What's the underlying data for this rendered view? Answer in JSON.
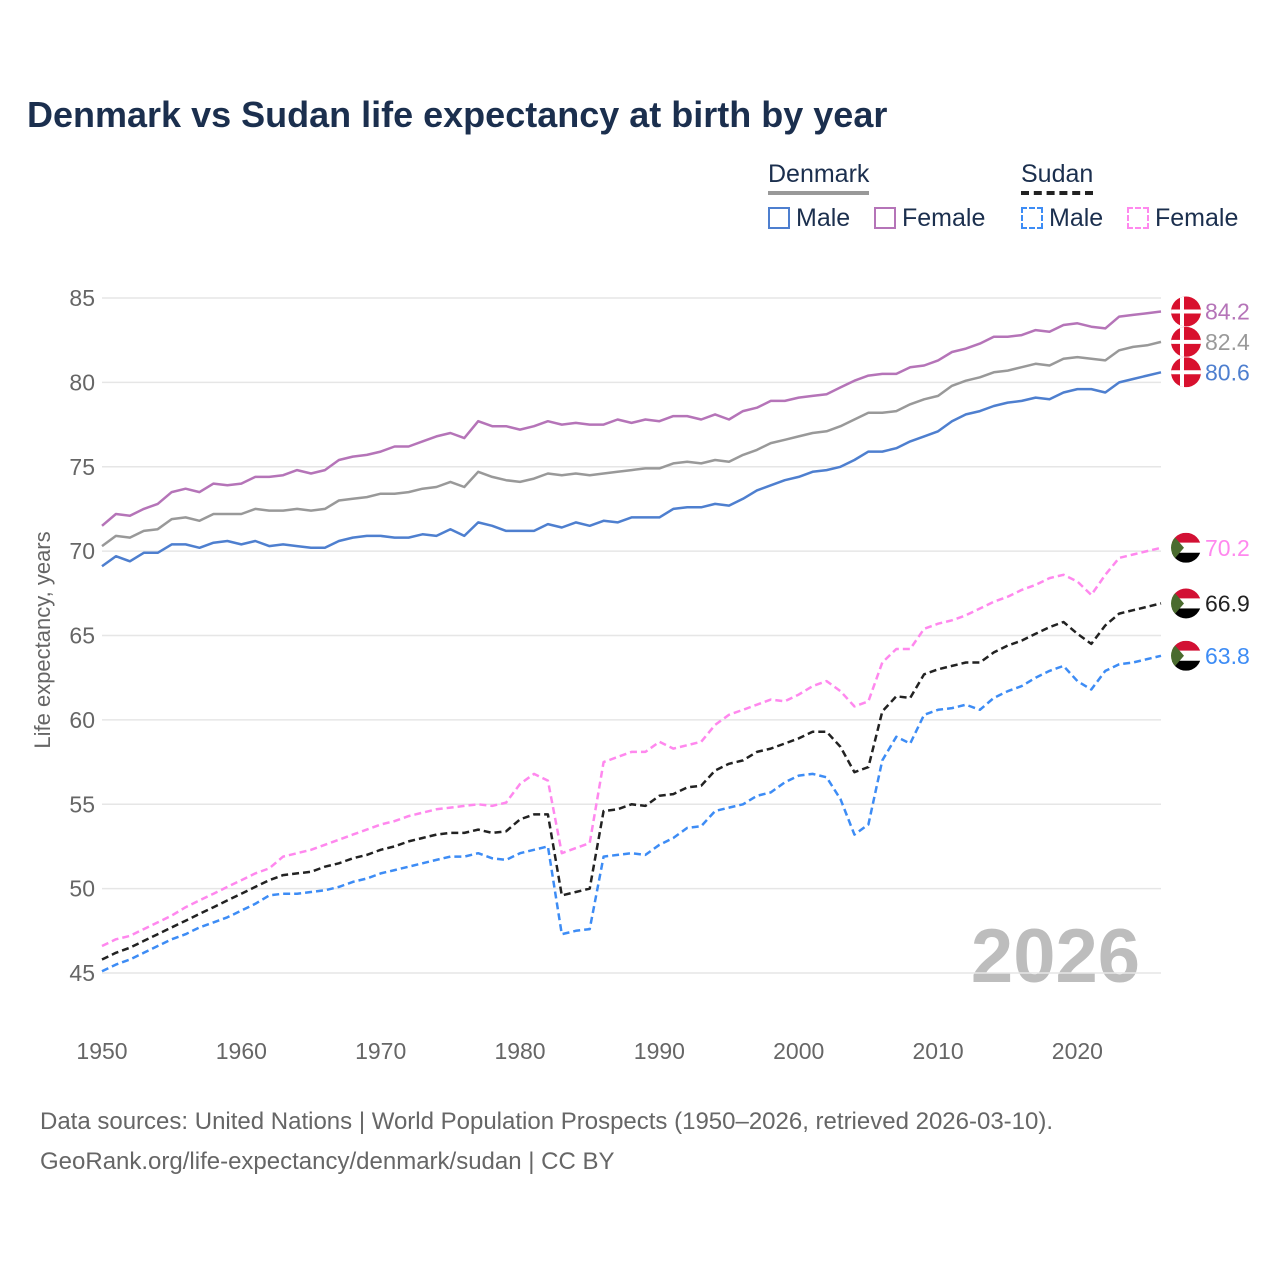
{
  "title": "Denmark vs Sudan life expectancy at birth by year",
  "legend": {
    "denmark": {
      "label": "Denmark",
      "male": "Male",
      "female": "Female"
    },
    "sudan": {
      "label": "Sudan",
      "male": "Male",
      "female": "Female"
    }
  },
  "footer": {
    "line1": "Data sources: United Nations | World Population Prospects (1950–2026, retrieved 2026-03-10).",
    "line2": "GeoRank.org/life-expectancy/denmark/sudan | CC BY"
  },
  "chart_data": {
    "type": "line",
    "title": "Denmark vs Sudan life expectancy at birth by year",
    "xlabel": "",
    "ylabel": "Life expectancy, years",
    "xlim": [
      1950,
      2026
    ],
    "ylim": [
      45,
      85
    ],
    "x_ticks": [
      1950,
      1960,
      1970,
      1980,
      1990,
      2000,
      2010,
      2020
    ],
    "y_ticks": [
      45,
      50,
      55,
      60,
      65,
      70,
      75,
      80,
      85
    ],
    "grid": true,
    "legend_position": "top-right",
    "year_watermark": "2026",
    "x_start": 1950,
    "series": [
      {
        "name": "Denmark Female",
        "country": "denmark",
        "color": "#b574b8",
        "dashed": false,
        "end_label": "84.2",
        "values": [
          71.5,
          72.2,
          72.1,
          72.5,
          72.8,
          73.5,
          73.7,
          73.5,
          74.0,
          73.9,
          74.0,
          74.4,
          74.4,
          74.5,
          74.8,
          74.6,
          74.8,
          75.4,
          75.6,
          75.7,
          75.9,
          76.2,
          76.2,
          76.5,
          76.8,
          77.0,
          76.7,
          77.7,
          77.4,
          77.4,
          77.2,
          77.4,
          77.7,
          77.5,
          77.6,
          77.5,
          77.5,
          77.8,
          77.6,
          77.8,
          77.7,
          78.0,
          78.0,
          77.8,
          78.1,
          77.8,
          78.3,
          78.5,
          78.9,
          78.9,
          79.1,
          79.2,
          79.3,
          79.7,
          80.1,
          80.4,
          80.5,
          80.5,
          80.9,
          81.0,
          81.3,
          81.8,
          82.0,
          82.3,
          82.7,
          82.7,
          82.8,
          83.1,
          83.0,
          83.4,
          83.5,
          83.3,
          83.2,
          83.9,
          84.0,
          84.1,
          84.2
        ]
      },
      {
        "name": "Denmark Total",
        "country": "denmark",
        "color": "#999999",
        "dashed": false,
        "end_label": "82.4",
        "values": [
          70.3,
          70.9,
          70.8,
          71.2,
          71.3,
          71.9,
          72.0,
          71.8,
          72.2,
          72.2,
          72.2,
          72.5,
          72.4,
          72.4,
          72.5,
          72.4,
          72.5,
          73.0,
          73.1,
          73.2,
          73.4,
          73.4,
          73.5,
          73.7,
          73.8,
          74.1,
          73.8,
          74.7,
          74.4,
          74.2,
          74.1,
          74.3,
          74.6,
          74.5,
          74.6,
          74.5,
          74.6,
          74.7,
          74.8,
          74.9,
          74.9,
          75.2,
          75.3,
          75.2,
          75.4,
          75.3,
          75.7,
          76.0,
          76.4,
          76.6,
          76.8,
          77.0,
          77.1,
          77.4,
          77.8,
          78.2,
          78.2,
          78.3,
          78.7,
          79.0,
          79.2,
          79.8,
          80.1,
          80.3,
          80.6,
          80.7,
          80.9,
          81.1,
          81.0,
          81.4,
          81.5,
          81.4,
          81.3,
          81.9,
          82.1,
          82.2,
          82.4
        ]
      },
      {
        "name": "Denmark Male",
        "country": "denmark",
        "color": "#4e7fcf",
        "dashed": false,
        "end_label": "80.6",
        "values": [
          69.1,
          69.7,
          69.4,
          69.9,
          69.9,
          70.4,
          70.4,
          70.2,
          70.5,
          70.6,
          70.4,
          70.6,
          70.3,
          70.4,
          70.3,
          70.2,
          70.2,
          70.6,
          70.8,
          70.9,
          70.9,
          70.8,
          70.8,
          71.0,
          70.9,
          71.3,
          70.9,
          71.7,
          71.5,
          71.2,
          71.2,
          71.2,
          71.6,
          71.4,
          71.7,
          71.5,
          71.8,
          71.7,
          72.0,
          72.0,
          72.0,
          72.5,
          72.6,
          72.6,
          72.8,
          72.7,
          73.1,
          73.6,
          73.9,
          74.2,
          74.4,
          74.7,
          74.8,
          75.0,
          75.4,
          75.9,
          75.9,
          76.1,
          76.5,
          76.8,
          77.1,
          77.7,
          78.1,
          78.3,
          78.6,
          78.8,
          78.9,
          79.1,
          79.0,
          79.4,
          79.6,
          79.6,
          79.4,
          80.0,
          80.2,
          80.4,
          80.6
        ]
      },
      {
        "name": "Sudan Female",
        "country": "sudan",
        "color": "#ff88ee",
        "dashed": true,
        "end_label": "70.2",
        "values": [
          46.6,
          47.0,
          47.2,
          47.6,
          48.0,
          48.4,
          48.9,
          49.3,
          49.7,
          50.1,
          50.5,
          50.9,
          51.2,
          51.9,
          52.1,
          52.3,
          52.6,
          52.9,
          53.2,
          53.5,
          53.8,
          54.0,
          54.3,
          54.5,
          54.7,
          54.8,
          54.9,
          55.0,
          54.9,
          55.1,
          56.2,
          56.8,
          56.4,
          52.1,
          52.4,
          52.7,
          57.5,
          57.8,
          58.1,
          58.1,
          58.7,
          58.3,
          58.5,
          58.7,
          59.7,
          60.3,
          60.6,
          60.9,
          61.2,
          61.1,
          61.5,
          62.0,
          62.3,
          61.7,
          60.8,
          61.1,
          63.4,
          64.2,
          64.2,
          65.4,
          65.7,
          65.9,
          66.2,
          66.6,
          67.0,
          67.3,
          67.7,
          68.0,
          68.4,
          68.6,
          68.2,
          67.4,
          68.6,
          69.6,
          69.8,
          70.0,
          70.2
        ]
      },
      {
        "name": "Sudan Total",
        "country": "sudan",
        "color": "#222222",
        "dashed": true,
        "end_label": "66.9",
        "values": [
          45.8,
          46.2,
          46.5,
          46.9,
          47.3,
          47.7,
          48.1,
          48.5,
          48.9,
          49.3,
          49.7,
          50.1,
          50.5,
          50.8,
          50.9,
          51.0,
          51.3,
          51.5,
          51.8,
          52.0,
          52.3,
          52.5,
          52.8,
          53.0,
          53.2,
          53.3,
          53.3,
          53.5,
          53.3,
          53.4,
          54.1,
          54.4,
          54.4,
          49.6,
          49.8,
          50.0,
          54.6,
          54.7,
          55.0,
          54.9,
          55.5,
          55.6,
          56.0,
          56.1,
          57.0,
          57.4,
          57.6,
          58.1,
          58.3,
          58.6,
          58.9,
          59.3,
          59.3,
          58.4,
          56.9,
          57.2,
          60.5,
          61.4,
          61.3,
          62.7,
          63.0,
          63.2,
          63.4,
          63.4,
          64.0,
          64.4,
          64.7,
          65.1,
          65.5,
          65.8,
          65.1,
          64.5,
          65.6,
          66.3,
          66.5,
          66.7,
          66.9
        ]
      },
      {
        "name": "Sudan Male",
        "country": "sudan",
        "color": "#3d8cf5",
        "dashed": true,
        "end_label": "63.8",
        "values": [
          45.1,
          45.5,
          45.8,
          46.2,
          46.6,
          47.0,
          47.3,
          47.7,
          48.0,
          48.3,
          48.7,
          49.1,
          49.6,
          49.7,
          49.7,
          49.8,
          49.9,
          50.1,
          50.4,
          50.6,
          50.9,
          51.1,
          51.3,
          51.5,
          51.7,
          51.9,
          51.9,
          52.1,
          51.8,
          51.7,
          52.1,
          52.3,
          52.5,
          47.3,
          47.5,
          47.6,
          51.9,
          52.0,
          52.1,
          52.0,
          52.6,
          53.0,
          53.6,
          53.7,
          54.6,
          54.8,
          55.0,
          55.5,
          55.7,
          56.3,
          56.7,
          56.8,
          56.6,
          55.3,
          53.2,
          53.8,
          57.6,
          59.0,
          58.6,
          60.3,
          60.6,
          60.7,
          60.9,
          60.6,
          61.3,
          61.7,
          62.0,
          62.5,
          62.9,
          63.2,
          62.3,
          61.8,
          62.9,
          63.3,
          63.4,
          63.6,
          63.8
        ]
      }
    ]
  }
}
